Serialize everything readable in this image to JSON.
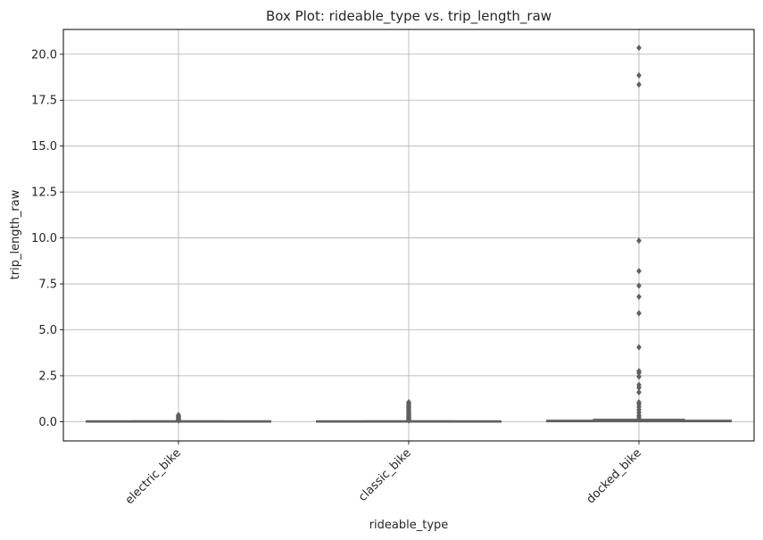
{
  "chart_data": {
    "type": "box",
    "title": "Box Plot: rideable_type vs. trip_length_raw",
    "xlabel": "rideable_type",
    "ylabel": "trip_length_raw",
    "categories": [
      "electric_bike",
      "classic_bike",
      "docked_bike"
    ],
    "ylim": [
      -1.05,
      21.35
    ],
    "yticks": [
      0.0,
      2.5,
      5.0,
      7.5,
      10.0,
      12.5,
      15.0,
      17.5,
      20.0
    ],
    "ytick_labels": [
      "0.0",
      "2.5",
      "5.0",
      "7.5",
      "10.0",
      "12.5",
      "15.0",
      "17.5",
      "20.0"
    ],
    "grid": true,
    "box_color": "#5f5f5f",
    "boxes": [
      {
        "category": "electric_bike",
        "q1": 0.0,
        "median": 0.01,
        "q3": 0.02,
        "whisker_low": 0.0,
        "whisker_high": 0.04,
        "outliers": [
          0.06,
          0.08,
          0.1,
          0.12,
          0.15,
          0.18,
          0.21,
          0.24,
          0.27,
          0.3,
          0.33,
          0.36
        ]
      },
      {
        "category": "classic_bike",
        "q1": 0.0,
        "median": 0.01,
        "q3": 0.02,
        "whisker_low": 0.0,
        "whisker_high": 0.04,
        "outliers": [
          0.06,
          0.09,
          0.12,
          0.16,
          0.2,
          0.24,
          0.28,
          0.32,
          0.37,
          0.42,
          0.47,
          0.52,
          0.58,
          0.64,
          0.7,
          0.76,
          0.82,
          0.88,
          0.94,
          1.0,
          1.06
        ]
      },
      {
        "category": "docked_bike",
        "q1": 0.0,
        "median": 0.03,
        "q3": 0.07,
        "whisker_low": 0.0,
        "whisker_high": 0.12,
        "outliers": [
          0.15,
          0.25,
          0.35,
          0.5,
          0.65,
          0.8,
          0.95,
          1.05,
          1.6,
          1.85,
          2.0,
          2.45,
          2.65,
          2.75,
          4.05,
          5.9,
          6.8,
          7.4,
          8.2,
          9.85,
          18.35,
          18.85,
          20.35
        ]
      }
    ]
  }
}
